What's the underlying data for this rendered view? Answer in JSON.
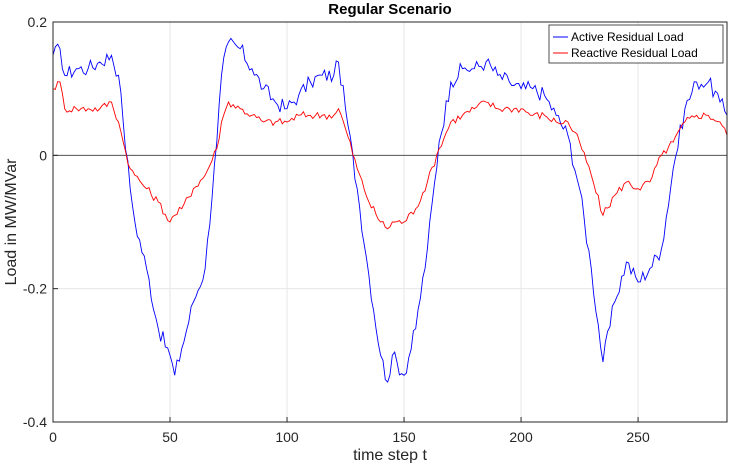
{
  "chart_data": {
    "type": "line",
    "title": "Regular Scenario",
    "xlabel": "time step t",
    "ylabel": "Load in MW/MVar",
    "xlim": [
      0,
      288
    ],
    "ylim": [
      -0.4,
      0.2
    ],
    "xticks": [
      "0",
      "50",
      "100",
      "150",
      "200",
      "250"
    ],
    "yticks": [
      "-0.4",
      "-0.2",
      "0",
      "0.2"
    ],
    "grid": true,
    "zero_line": true,
    "legend_position": "top-right",
    "series": [
      {
        "name": "Active Residual Load",
        "color": "#0000ff",
        "x": [
          0,
          3,
          5,
          10,
          15,
          20,
          25,
          28,
          30,
          33,
          35,
          40,
          45,
          50,
          52,
          55,
          60,
          65,
          70,
          72,
          75,
          80,
          85,
          90,
          95,
          100,
          105,
          110,
          115,
          120,
          122,
          125,
          130,
          135,
          140,
          143,
          145,
          150,
          155,
          160,
          165,
          170,
          175,
          180,
          185,
          190,
          195,
          200,
          205,
          210,
          215,
          220,
          225,
          230,
          235,
          240,
          245,
          250,
          255,
          260,
          265,
          270,
          275,
          280,
          285,
          288
        ],
        "y": [
          0.15,
          0.16,
          0.12,
          0.13,
          0.13,
          0.14,
          0.15,
          0.12,
          0.05,
          -0.05,
          -0.1,
          -0.17,
          -0.26,
          -0.3,
          -0.33,
          -0.29,
          -0.22,
          -0.17,
          0.02,
          0.12,
          0.17,
          0.16,
          0.13,
          0.1,
          0.08,
          0.07,
          0.09,
          0.11,
          0.12,
          0.12,
          0.14,
          0.07,
          -0.05,
          -0.18,
          -0.3,
          -0.34,
          -0.3,
          -0.33,
          -0.26,
          -0.14,
          0.02,
          0.11,
          0.13,
          0.13,
          0.14,
          0.12,
          0.11,
          0.1,
          0.1,
          0.09,
          0.06,
          0.03,
          -0.05,
          -0.17,
          -0.31,
          -0.22,
          -0.16,
          -0.19,
          -0.17,
          -0.14,
          -0.02,
          0.07,
          0.11,
          0.11,
          0.08,
          0.06
        ]
      },
      {
        "name": "Reactive Residual Load",
        "color": "#ff0000",
        "x": [
          0,
          3,
          5,
          10,
          15,
          20,
          25,
          28,
          30,
          33,
          35,
          40,
          45,
          50,
          52,
          55,
          60,
          65,
          70,
          72,
          75,
          80,
          85,
          90,
          95,
          100,
          105,
          110,
          115,
          120,
          122,
          125,
          130,
          135,
          140,
          143,
          145,
          150,
          155,
          160,
          165,
          170,
          175,
          180,
          185,
          190,
          195,
          200,
          205,
          210,
          215,
          220,
          225,
          230,
          235,
          240,
          245,
          250,
          255,
          260,
          265,
          270,
          275,
          280,
          285,
          288
        ],
        "y": [
          0.1,
          0.11,
          0.07,
          0.07,
          0.07,
          0.07,
          0.08,
          0.05,
          0.02,
          -0.02,
          -0.03,
          -0.05,
          -0.07,
          -0.1,
          -0.09,
          -0.08,
          -0.05,
          -0.03,
          0.01,
          0.05,
          0.08,
          0.07,
          0.06,
          0.05,
          0.05,
          0.05,
          0.06,
          0.06,
          0.06,
          0.06,
          0.07,
          0.04,
          -0.02,
          -0.07,
          -0.1,
          -0.11,
          -0.1,
          -0.1,
          -0.08,
          -0.04,
          0.01,
          0.05,
          0.06,
          0.07,
          0.08,
          0.07,
          0.07,
          0.07,
          0.06,
          0.06,
          0.05,
          0.05,
          0.02,
          -0.03,
          -0.09,
          -0.06,
          -0.04,
          -0.05,
          -0.04,
          0.0,
          0.02,
          0.05,
          0.06,
          0.06,
          0.05,
          0.03
        ]
      }
    ]
  }
}
